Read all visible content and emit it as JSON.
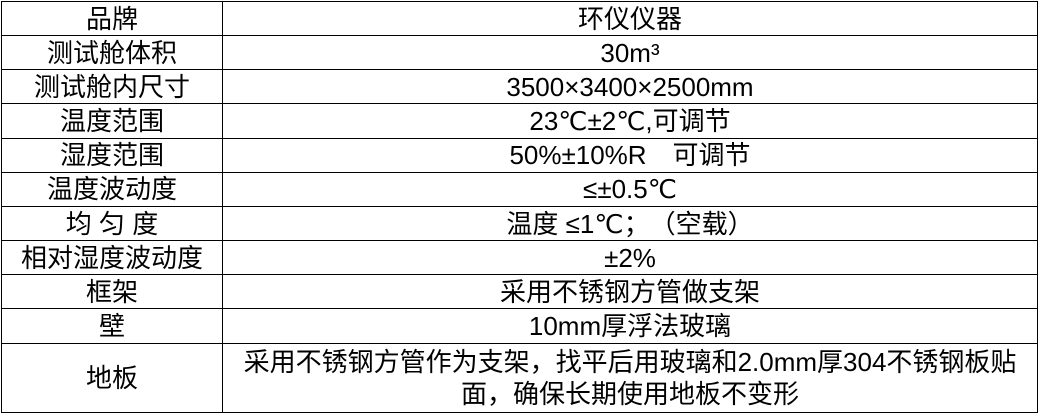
{
  "table": {
    "colors": {
      "border": "#000000",
      "text": "#000000",
      "background": "#ffffff"
    },
    "rows": [
      {
        "label": "品牌",
        "value": "环仪仪器"
      },
      {
        "label": "测试舱体积",
        "value": "30m³"
      },
      {
        "label": "测试舱内尺寸",
        "value": "3500×3400×2500mm"
      },
      {
        "label": "温度范围",
        "value": "23℃±2℃,可调节"
      },
      {
        "label": "湿度范围",
        "value": "50%±10%R　可调节"
      },
      {
        "label": "温度波动度",
        "value": "≤±0.5℃"
      },
      {
        "label": "均 匀 度",
        "value": "温度 ≤1℃；　（空载）"
      },
      {
        "label": "相对湿度波动度",
        "value": "±2%"
      },
      {
        "label": "框架",
        "value": "采用不锈钢方管做支架"
      },
      {
        "label": "壁",
        "value": "10mm厚浮法玻璃"
      },
      {
        "label": "地板",
        "value": "采用不锈钢方管作为支架，找平后用玻璃和2.0mm厚304不锈钢板贴面，确保长期使用地板不变形"
      }
    ]
  }
}
